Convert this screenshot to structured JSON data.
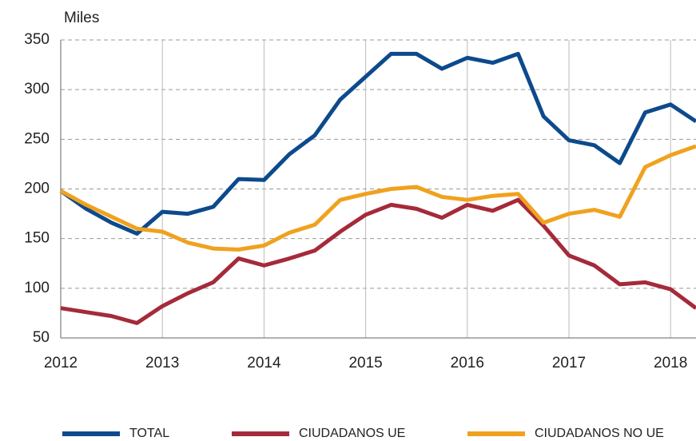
{
  "chart_data": {
    "type": "line",
    "y_label": "Miles",
    "x": [
      2012,
      2012.25,
      2012.5,
      2012.75,
      2013,
      2013.25,
      2013.5,
      2013.75,
      2014,
      2014.25,
      2014.5,
      2014.75,
      2015,
      2015.25,
      2015.5,
      2015.75,
      2016,
      2016.25,
      2016.5,
      2016.75,
      2017,
      2017.25,
      2017.5,
      2017.75,
      2018,
      2018.25
    ],
    "series": [
      {
        "name": "TOTAL",
        "color": "#0d4a8c",
        "values": [
          198,
          180,
          166,
          155,
          177,
          175,
          182,
          210,
          209,
          235,
          254,
          290,
          313,
          336,
          336,
          321,
          332,
          327,
          336,
          273,
          249,
          244,
          226,
          277,
          285,
          268
        ]
      },
      {
        "name": "CIUDADANOS UE",
        "color": "#a52a3a",
        "values": [
          80,
          76,
          72,
          65,
          82,
          95,
          106,
          130,
          123,
          130,
          138,
          157,
          174,
          184,
          180,
          171,
          184,
          178,
          189,
          163,
          133,
          123,
          104,
          106,
          99,
          80
        ]
      },
      {
        "name": "CIUDADANOS NO UE",
        "color": "#f0a21e",
        "values": [
          198,
          184,
          172,
          160,
          157,
          146,
          140,
          139,
          143,
          156,
          164,
          189,
          195,
          200,
          202,
          192,
          189,
          193,
          195,
          166,
          175,
          179,
          172,
          222,
          234,
          243
        ]
      }
    ],
    "xlim": [
      2012,
      2018.25
    ],
    "xticks": [
      2012,
      2013,
      2014,
      2015,
      2016,
      2017,
      2018
    ],
    "ylim": [
      50,
      350
    ],
    "yticks": [
      50,
      100,
      150,
      200,
      250,
      300,
      350
    ],
    "grid": true
  }
}
